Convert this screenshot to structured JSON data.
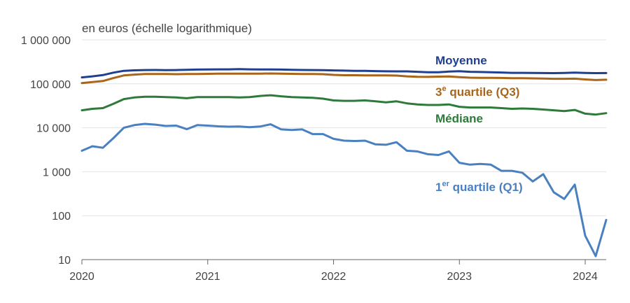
{
  "chart_data": {
    "type": "line",
    "unit_label": "en euros (échelle logarithmique)",
    "yscale": "log",
    "ylim": [
      10,
      1000000
    ],
    "y_ticks": [
      {
        "value": 1000000,
        "label": "1 000 000"
      },
      {
        "value": 100000,
        "label": "100 000"
      },
      {
        "value": 10000,
        "label": "10 000"
      },
      {
        "value": 1000,
        "label": "1 000"
      },
      {
        "value": 100,
        "label": "100"
      },
      {
        "value": 10,
        "label": "10"
      }
    ],
    "x_ticks": [
      "2020",
      "2021",
      "2022",
      "2023",
      "2024"
    ],
    "xlim": [
      "2020-01",
      "2024-03"
    ],
    "x": [
      "2020-01",
      "2020-02",
      "2020-03",
      "2020-04",
      "2020-05",
      "2020-06",
      "2020-07",
      "2020-08",
      "2020-09",
      "2020-10",
      "2020-11",
      "2020-12",
      "2021-01",
      "2021-02",
      "2021-03",
      "2021-04",
      "2021-05",
      "2021-06",
      "2021-07",
      "2021-08",
      "2021-09",
      "2021-10",
      "2021-11",
      "2021-12",
      "2022-01",
      "2022-02",
      "2022-03",
      "2022-04",
      "2022-05",
      "2022-06",
      "2022-07",
      "2022-08",
      "2022-09",
      "2022-10",
      "2022-11",
      "2022-12",
      "2023-01",
      "2023-02",
      "2023-03",
      "2023-04",
      "2023-05",
      "2023-06",
      "2023-07",
      "2023-08",
      "2023-09",
      "2023-10",
      "2023-11",
      "2023-12",
      "2024-01",
      "2024-02",
      "2024-03"
    ],
    "series": [
      {
        "name": "Moyenne",
        "key": "moyenne",
        "color": "#1f3f8f",
        "values": [
          140000,
          148000,
          158000,
          180000,
          198000,
          203000,
          206000,
          207000,
          205000,
          206000,
          209000,
          211000,
          212000,
          214000,
          214000,
          216000,
          214000,
          213000,
          213000,
          211000,
          208000,
          207000,
          206000,
          205000,
          202000,
          200000,
          198000,
          197000,
          195000,
          193000,
          192000,
          192000,
          188000,
          184000,
          183000,
          190000,
          194000,
          188000,
          186000,
          184000,
          181000,
          178000,
          178000,
          177000,
          176000,
          175000,
          177000,
          180000,
          177000,
          175000,
          176000
        ]
      },
      {
        "name": "3e quartile (Q3)",
        "label_main": "3",
        "label_sup": "e",
        "label_rest": " quartile (Q3)",
        "key": "q3",
        "color": "#a8661a",
        "values": [
          104000,
          110000,
          116000,
          135000,
          155000,
          162000,
          167000,
          168000,
          167000,
          166000,
          167000,
          167000,
          169000,
          170000,
          170000,
          171000,
          170000,
          171000,
          172000,
          171000,
          169000,
          168000,
          167000,
          166000,
          160000,
          157000,
          157000,
          156000,
          155000,
          155000,
          154000,
          148000,
          145000,
          144000,
          146000,
          147000,
          142000,
          138000,
          137000,
          137000,
          136000,
          134000,
          134000,
          133000,
          132000,
          130000,
          130000,
          131000,
          126000,
          122000,
          124000
        ]
      },
      {
        "name": "Médiane",
        "key": "mediane",
        "color": "#2e7a3a",
        "values": [
          25000,
          27000,
          28000,
          35000,
          45000,
          49000,
          51000,
          51000,
          50000,
          49000,
          47000,
          50000,
          50000,
          50000,
          50000,
          49000,
          50000,
          53000,
          55000,
          52000,
          50000,
          49000,
          48000,
          46000,
          42000,
          41000,
          41000,
          42000,
          40000,
          38000,
          40000,
          36000,
          34000,
          33000,
          33000,
          34000,
          30000,
          29000,
          29000,
          29000,
          28000,
          27000,
          27500,
          27000,
          26000,
          25000,
          24000,
          25500,
          21000,
          20000,
          21500
        ]
      },
      {
        "name": "1er quartile (Q1)",
        "label_main": "1",
        "label_sup": "er",
        "label_rest": " quartile (Q1)",
        "key": "q1",
        "color": "#4a80c0",
        "values": [
          3000,
          3800,
          3500,
          5800,
          10000,
          11500,
          12300,
          11800,
          11000,
          11200,
          9300,
          11500,
          11200,
          10800,
          10600,
          10700,
          10300,
          10700,
          12000,
          9200,
          8900,
          9200,
          7200,
          7200,
          5600,
          5100,
          5000,
          5100,
          4200,
          4100,
          4700,
          3000,
          2900,
          2500,
          2400,
          2900,
          1600,
          1450,
          1500,
          1450,
          1050,
          1050,
          950,
          600,
          880,
          340,
          240,
          510,
          35,
          12,
          80
        ]
      }
    ]
  }
}
